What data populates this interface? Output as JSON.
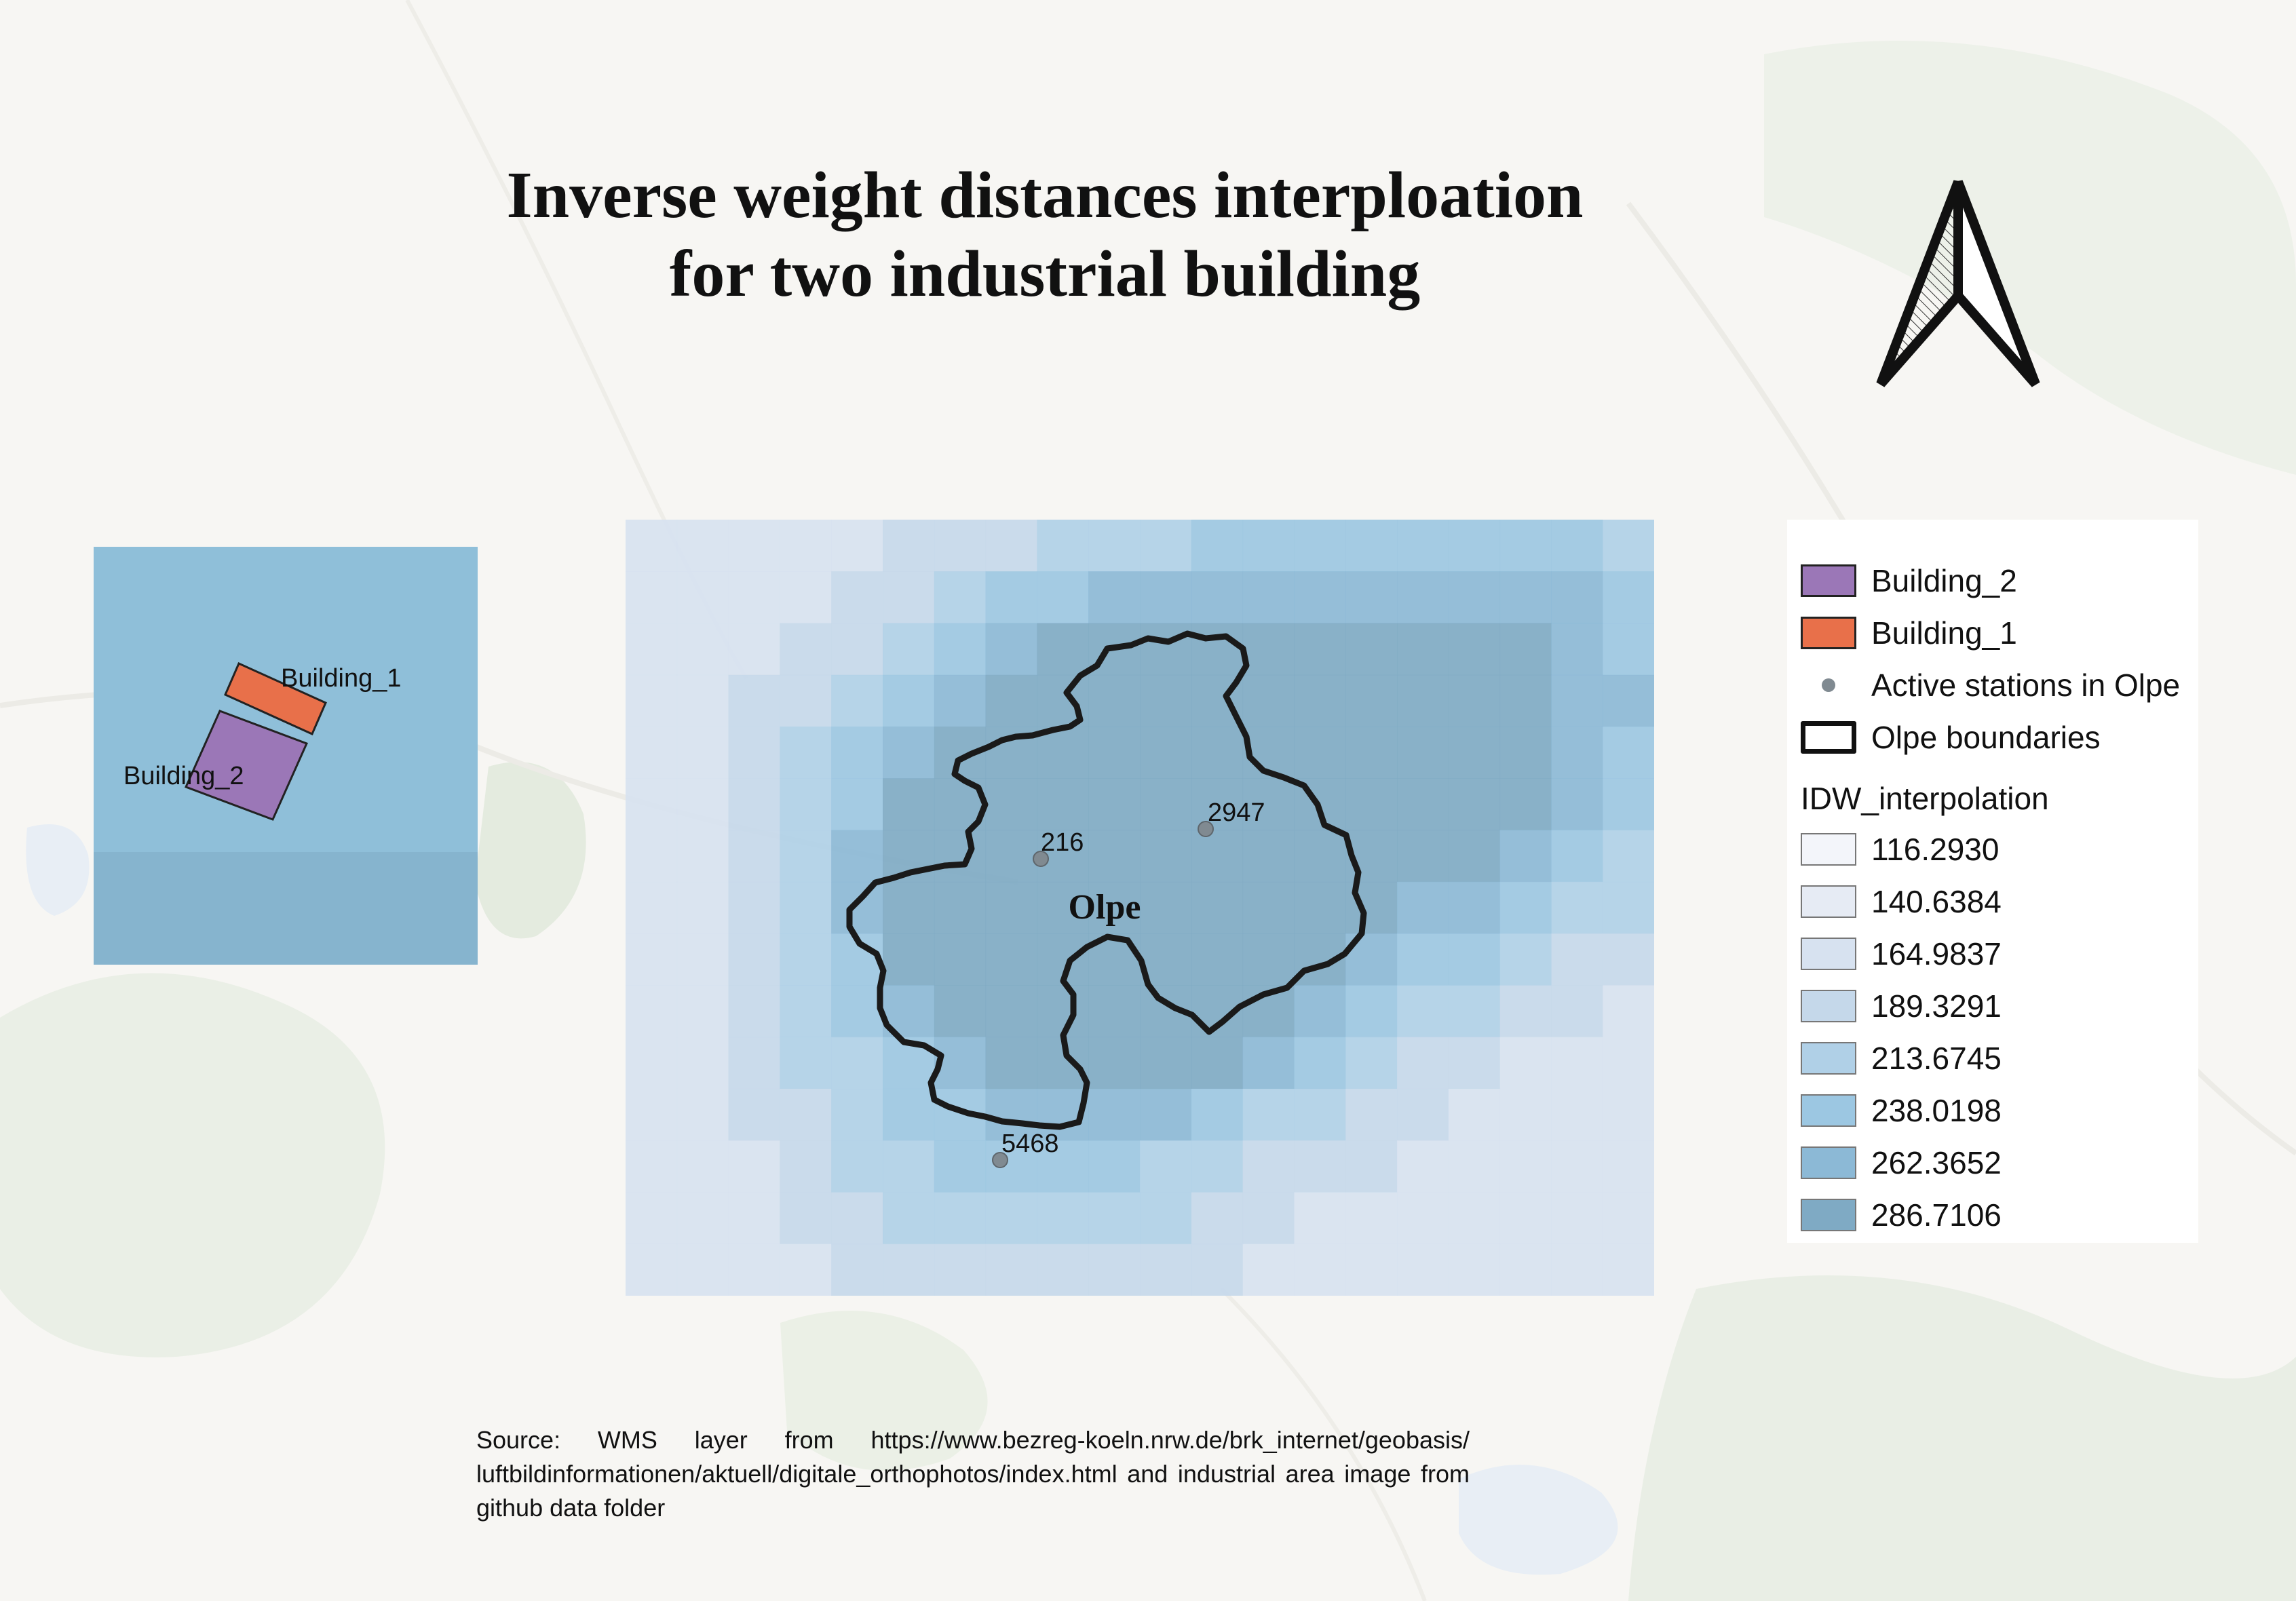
{
  "title": {
    "line1": "Inverse weight distances interploation",
    "line2": "for two industrial building"
  },
  "main_map": {
    "area_label": "Olpe",
    "stations": [
      {
        "label": "216"
      },
      {
        "label": "2947"
      },
      {
        "label": "5468"
      }
    ]
  },
  "inset_map": {
    "buildings": [
      {
        "label": "Building_1",
        "color": "#e8704a"
      },
      {
        "label": "Building_2",
        "color": "#9b77b7"
      }
    ]
  },
  "legend": {
    "items": [
      {
        "label": "Building_2",
        "kind": "polygon",
        "color": "#9b77b7"
      },
      {
        "label": "Building_1",
        "kind": "polygon",
        "color": "#e8704a"
      },
      {
        "label": "Active stations in Olpe",
        "kind": "point",
        "color": "#808a91"
      },
      {
        "label": "Olpe boundaries",
        "kind": "outline",
        "color": "#111111"
      }
    ],
    "ramp_title": "IDW_interpolation",
    "ramp": [
      {
        "value": "116.2930",
        "color": "#f3f5fa"
      },
      {
        "value": "140.6384",
        "color": "#e6ebf4"
      },
      {
        "value": "164.9837",
        "color": "#d7e2f0"
      },
      {
        "value": "189.3291",
        "color": "#c5d8ea"
      },
      {
        "value": "213.6745",
        "color": "#b0d0e7"
      },
      {
        "value": "238.0198",
        "color": "#9cc7e2"
      },
      {
        "value": "262.3652",
        "color": "#8cb9d6"
      },
      {
        "value": "286.7106",
        "color": "#7faac4"
      }
    ]
  },
  "source_text": "Source: WMS layer from https://www.bezreg-koeln.nrw.de/brk_internet/geobasis/ luftbildinformationen/aktuell/digitale_orthophotos/index.html and industrial area image from github data folder"
}
